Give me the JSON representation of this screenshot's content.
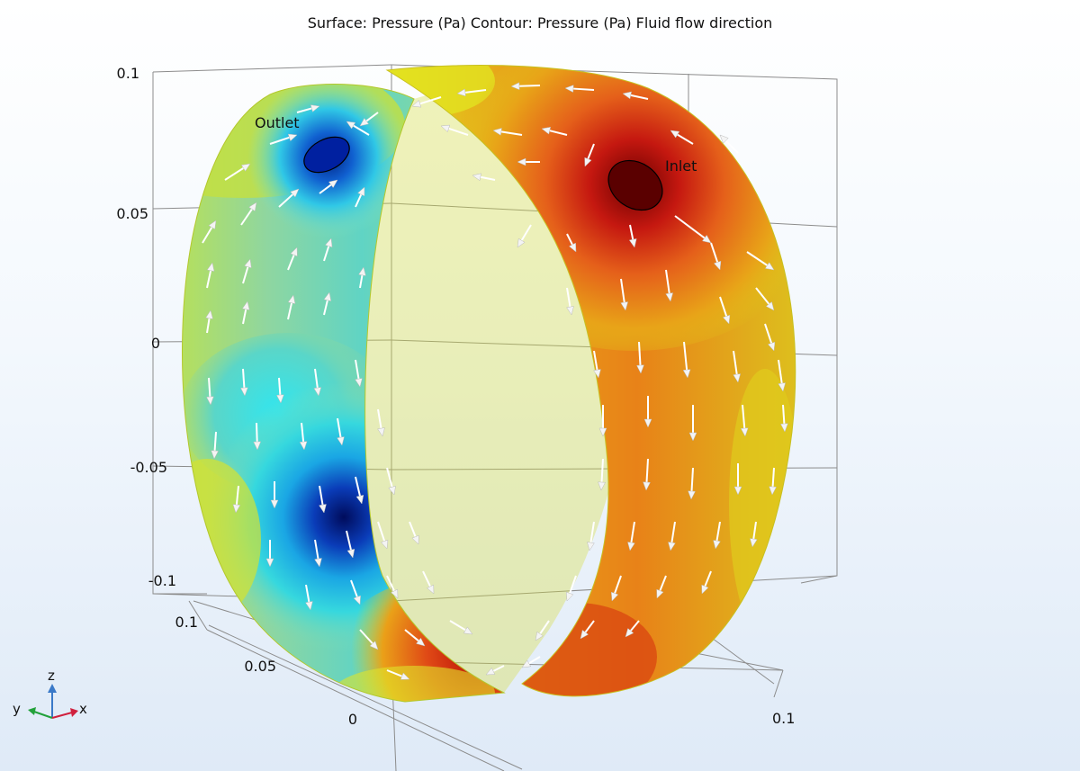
{
  "title": "Surface: Pressure (Pa)  Contour: Pressure (Pa) Fluid flow direction",
  "z_axis": {
    "ticks": [
      "0.1",
      "0.05",
      "0",
      "-0.05",
      "-0.1"
    ]
  },
  "y_axis": {
    "ticks": [
      "0.1",
      "0.05",
      "0"
    ]
  },
  "x_axis": {
    "ticks": [
      "0.1"
    ]
  },
  "labels": {
    "outlet": "Outlet",
    "inlet": "Inlet"
  },
  "triad": {
    "z": "z",
    "y": "y",
    "x": "x"
  },
  "colors": {
    "high": "#6a0000",
    "warm": "#d9281c",
    "orange": "#ea7d12",
    "mid": "#d7e21f",
    "cyan": "#2ae3ee",
    "low": "#00107a",
    "triad_z": "#3a79c8",
    "triad_y": "#22a13a",
    "triad_x": "#d0203e"
  }
}
